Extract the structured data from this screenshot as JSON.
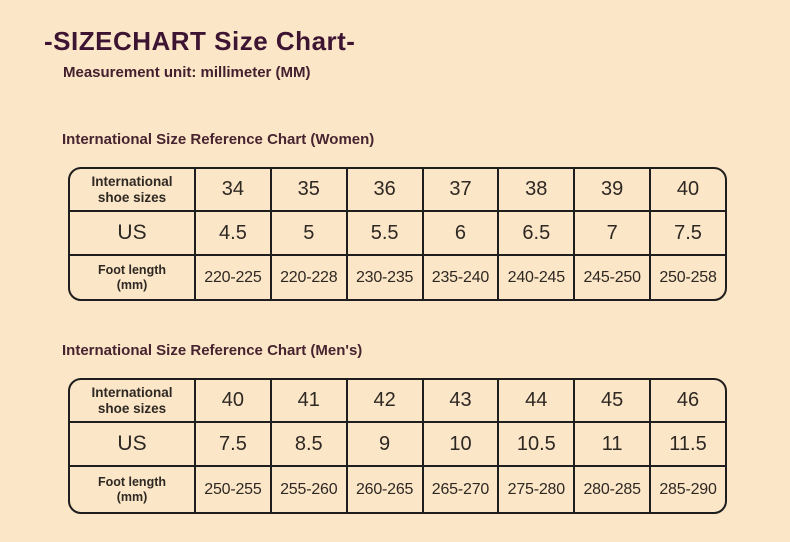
{
  "title": "-SIZECHART Size Chart-",
  "subtitle": "Measurement unit: millimeter (MM)",
  "colors": {
    "background": "#fce6c8",
    "title_text": "#3d1532",
    "heading_text": "#47242f",
    "table_border": "#1e1e1e",
    "cell_text": "#2e2823",
    "foot_label_text": "#5e3124"
  },
  "women": {
    "heading": "International Size Reference Chart (Women)",
    "rows": [
      {
        "label": "International\nshoe sizes",
        "values": [
          "34",
          "35",
          "36",
          "37",
          "38",
          "39",
          "40"
        ]
      },
      {
        "label": "US",
        "values": [
          "4.5",
          "5",
          "5.5",
          "6",
          "6.5",
          "7",
          "7.5"
        ]
      },
      {
        "label": "Foot length\n(mm)",
        "values": [
          "220-225",
          "220-228",
          "230-235",
          "235-240",
          "240-245",
          "245-250",
          "250-258"
        ]
      }
    ]
  },
  "men": {
    "heading": "International Size Reference Chart (Men's)",
    "rows": [
      {
        "label": "International\nshoe sizes",
        "values": [
          "40",
          "41",
          "42",
          "43",
          "44",
          "45",
          "46"
        ]
      },
      {
        "label": "US",
        "values": [
          "7.5",
          "8.5",
          "9",
          "10",
          "10.5",
          "11",
          "11.5"
        ]
      },
      {
        "label": "Foot length\n(mm)",
        "values": [
          "250-255",
          "255-260",
          "260-265",
          "265-270",
          "275-280",
          "280-285",
          "285-290"
        ]
      }
    ]
  }
}
